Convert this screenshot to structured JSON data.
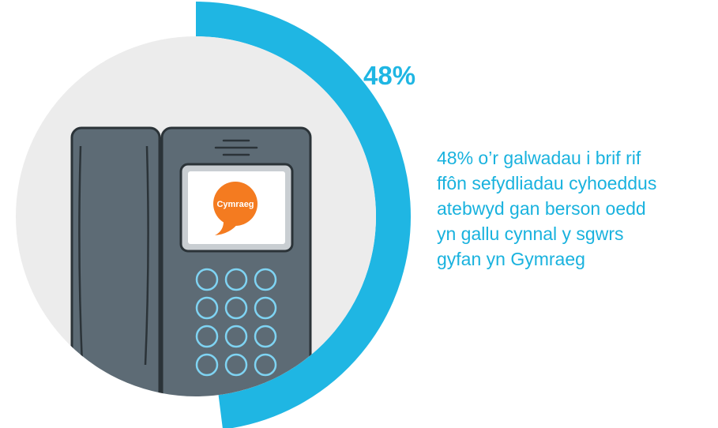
{
  "stat": {
    "percent_label": "48%",
    "value_percent": 48,
    "caption_lines": [
      "48% o’r galwadau i brif rif",
      "ffôn sefydliadau cyhoeddus",
      "atebwyd gan berson oedd",
      "yn gallu cynnal y sgwrs",
      "gyfan yn Gymraeg"
    ]
  },
  "phone": {
    "screen_badge": "Cymraeg",
    "keypad_rows": 4,
    "keypad_cols": 3
  },
  "icons": {
    "main": "desk-phone-icon",
    "badge": "speech-bubble-icon"
  },
  "colors": {
    "accent": "#1fb6e3",
    "circle": "#ececec",
    "phone_body": "#5d6b75",
    "phone_outline": "#2b3338",
    "screen_frame": "#c9ced2",
    "badge": "#f47b20",
    "key_outline": "#7fd3f2"
  }
}
